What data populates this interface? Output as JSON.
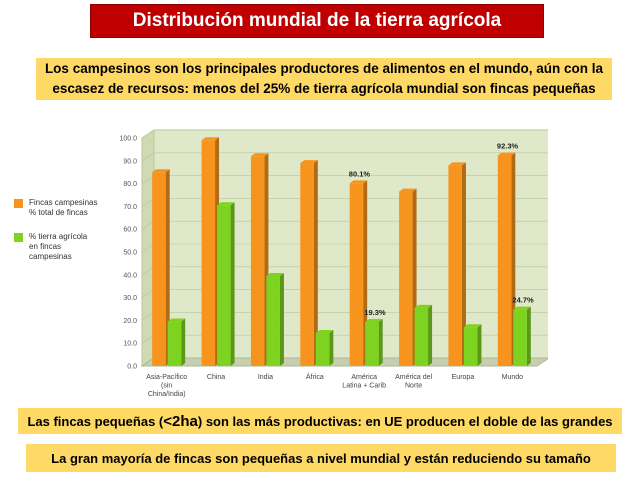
{
  "header": {
    "title": "Distribución mundial de la tierra agrícola",
    "subtitle": "Los campesinos son los principales productores de alimentos en el mundo, aún con la escasez de recursos: menos del 25% de tierra agrícola mundial son fincas pequeñas"
  },
  "legend": [
    {
      "label": "Fincas campesinas\n% total de fincas",
      "color": "#f7941d"
    },
    {
      "label": "% tierra agrícola\nen fincas\ncampesinas",
      "color": "#7ed321"
    }
  ],
  "notes": {
    "note1_before": "Las fincas pequeñas (",
    "note1_strong": "<2ha",
    "note1_after": ") son las más productivas: en UE producen el doble de las grandes",
    "note2": "La gran mayoría de fincas son pequeñas a nivel mundial y están reduciendo su tamaño"
  },
  "chart_data": {
    "type": "bar",
    "categories": [
      [
        "Asia-Pacífico",
        "(sin",
        "China/India)"
      ],
      [
        "China"
      ],
      [
        "India"
      ],
      [
        "África"
      ],
      [
        "América",
        "Latina + Carib"
      ],
      [
        "América del",
        "Norte"
      ],
      [
        "Europa"
      ],
      [
        "Mundo"
      ]
    ],
    "series": [
      {
        "name": "Fincas campesinas % total de fincas",
        "color": "#f7941d",
        "values": [
          85,
          99,
          92,
          89,
          80.1,
          76.5,
          88,
          92.3
        ]
      },
      {
        "name": "% tierra agrícola en fincas campesinas",
        "color": "#7ed321",
        "values": [
          19.5,
          70.5,
          39.5,
          14.5,
          19.3,
          25.5,
          17,
          24.7
        ]
      }
    ],
    "data_labels": [
      {
        "series": 0,
        "index": 4,
        "text": "80.1%"
      },
      {
        "series": 1,
        "index": 4,
        "text": "19.3%"
      },
      {
        "series": 0,
        "index": 7,
        "text": "92.3%"
      },
      {
        "series": 1,
        "index": 7,
        "text": "24.7%"
      }
    ],
    "yticks": [
      "0.0",
      "10.0",
      "20.0",
      "30.0",
      "40.0",
      "50.0",
      "60.0",
      "70.0",
      "80.0",
      "90.0",
      "100.0"
    ],
    "ylim": [
      0,
      100
    ],
    "grid": true,
    "legend_position": "left",
    "xlabel": "",
    "ylabel": ""
  }
}
